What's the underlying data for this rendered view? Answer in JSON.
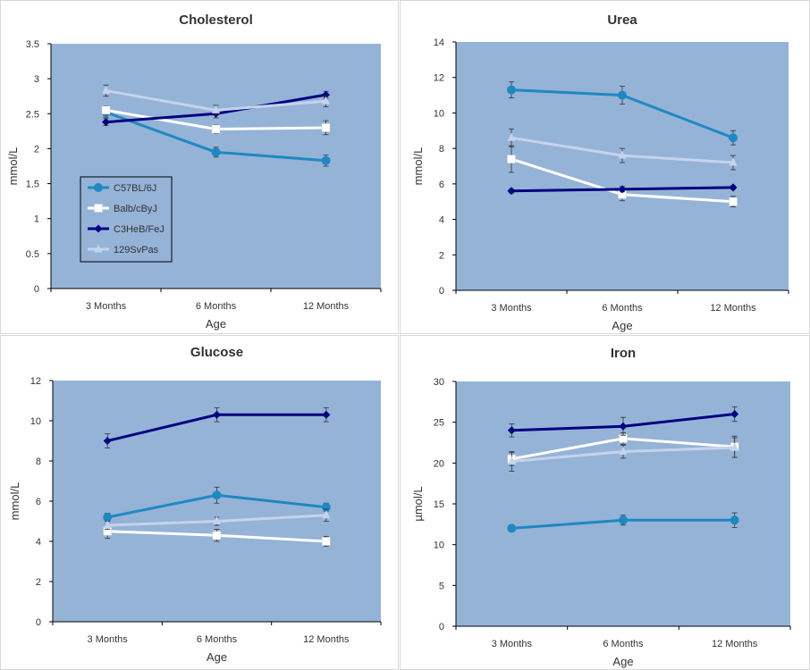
{
  "colors": {
    "plot_bg": "#95B3D7",
    "border": "#d9d9d9",
    "series": [
      "#1F88C2",
      "#FFFFFF",
      "#000080",
      "#C5D3EC"
    ]
  },
  "chart_data": [
    {
      "type": "line",
      "title": "Cholesterol",
      "xlabel": "Age",
      "ylabel": "mmol/L",
      "categories": [
        "3 Months",
        "6 Months",
        "12 Months"
      ],
      "ylim": [
        0,
        3.5
      ],
      "yticks": [
        "0",
        "0.5",
        "1",
        "1.5",
        "2",
        "2.5",
        "3",
        "3.5"
      ],
      "grid": false,
      "legend": {
        "position": "bottom-left",
        "entries": [
          "C57BL/6J",
          "Balb/cByJ",
          "C3HeB/FeJ",
          "129SvPas"
        ]
      },
      "series": [
        {
          "name": "C57BL/6J",
          "marker": "circle",
          "values": [
            2.52,
            1.95,
            1.83
          ],
          "errors": [
            0.07,
            0.07,
            0.08
          ]
        },
        {
          "name": "Balb/cByJ",
          "marker": "square",
          "values": [
            2.55,
            2.28,
            2.3
          ],
          "errors": [
            0.06,
            0.06,
            0.1
          ]
        },
        {
          "name": "C3HeB/FeJ",
          "marker": "diamond",
          "values": [
            2.38,
            2.5,
            2.77
          ],
          "errors": [
            0.05,
            0.06,
            0.05
          ]
        },
        {
          "name": "129SvPas",
          "marker": "triangle",
          "values": [
            2.83,
            2.55,
            2.68
          ],
          "errors": [
            0.08,
            0.07,
            0.08
          ]
        }
      ]
    },
    {
      "type": "line",
      "title": "Urea",
      "xlabel": "Age",
      "ylabel": "mmol/L",
      "categories": [
        "3 Months",
        "6 Months",
        "12 Months"
      ],
      "ylim": [
        0,
        14
      ],
      "yticks": [
        "0",
        "2",
        "4",
        "6",
        "8",
        "10",
        "12",
        "14"
      ],
      "grid": false,
      "series": [
        {
          "name": "C57BL/6J",
          "marker": "circle",
          "values": [
            11.3,
            11.0,
            8.6
          ],
          "errors": [
            0.45,
            0.5,
            0.4
          ]
        },
        {
          "name": "Balb/cByJ",
          "marker": "square",
          "values": [
            7.4,
            5.4,
            5.0
          ],
          "errors": [
            0.75,
            0.35,
            0.3
          ]
        },
        {
          "name": "C3HeB/FeJ",
          "marker": "diamond",
          "values": [
            5.6,
            5.7,
            5.8
          ],
          "errors": [
            0.1,
            0.15,
            0.1
          ]
        },
        {
          "name": "129SvPas",
          "marker": "triangle",
          "values": [
            8.6,
            7.6,
            7.2
          ],
          "errors": [
            0.5,
            0.4,
            0.4
          ]
        }
      ]
    },
    {
      "type": "line",
      "title": "Glucose",
      "xlabel": "Age",
      "ylabel": "mmol/L",
      "categories": [
        "3 Months",
        "6 Months",
        "12 Months"
      ],
      "ylim": [
        0,
        12
      ],
      "yticks": [
        "0",
        "2",
        "4",
        "6",
        "8",
        "10",
        "12"
      ],
      "grid": false,
      "series": [
        {
          "name": "C57BL/6J",
          "marker": "circle",
          "values": [
            5.2,
            6.3,
            5.7
          ],
          "errors": [
            0.2,
            0.4,
            0.2
          ]
        },
        {
          "name": "Balb/cByJ",
          "marker": "square",
          "values": [
            4.5,
            4.3,
            4.0
          ],
          "errors": [
            0.35,
            0.3,
            0.25
          ]
        },
        {
          "name": "C3HeB/FeJ",
          "marker": "diamond",
          "values": [
            9.0,
            10.3,
            10.3
          ],
          "errors": [
            0.35,
            0.35,
            0.35
          ]
        },
        {
          "name": "129SvPas",
          "marker": "triangle",
          "values": [
            4.8,
            5.0,
            5.3
          ],
          "errors": [
            0.2,
            0.2,
            0.3
          ]
        }
      ]
    },
    {
      "type": "line",
      "title": "Iron",
      "xlabel": "Age",
      "ylabel": "µmol/L",
      "categories": [
        "3 Months",
        "6 Months",
        "12 Months"
      ],
      "ylim": [
        0,
        30
      ],
      "yticks": [
        "0",
        "5",
        "10",
        "15",
        "20",
        "25",
        "30"
      ],
      "grid": false,
      "series": [
        {
          "name": "C57BL/6J",
          "marker": "circle",
          "values": [
            12.0,
            13.0,
            13.0
          ],
          "errors": [
            0.3,
            0.6,
            0.9
          ]
        },
        {
          "name": "Balb/cByJ",
          "marker": "square",
          "values": [
            20.5,
            23.0,
            22.0
          ],
          "errors": [
            0.8,
            0.7,
            1.3
          ]
        },
        {
          "name": "C3HeB/FeJ",
          "marker": "diamond",
          "values": [
            24.0,
            24.5,
            26.0
          ],
          "errors": [
            0.8,
            1.1,
            0.9
          ]
        },
        {
          "name": "129SvPas",
          "marker": "triangle",
          "values": [
            20.2,
            21.4,
            21.9
          ],
          "errors": [
            1.2,
            0.8,
            1.2
          ]
        }
      ]
    }
  ]
}
